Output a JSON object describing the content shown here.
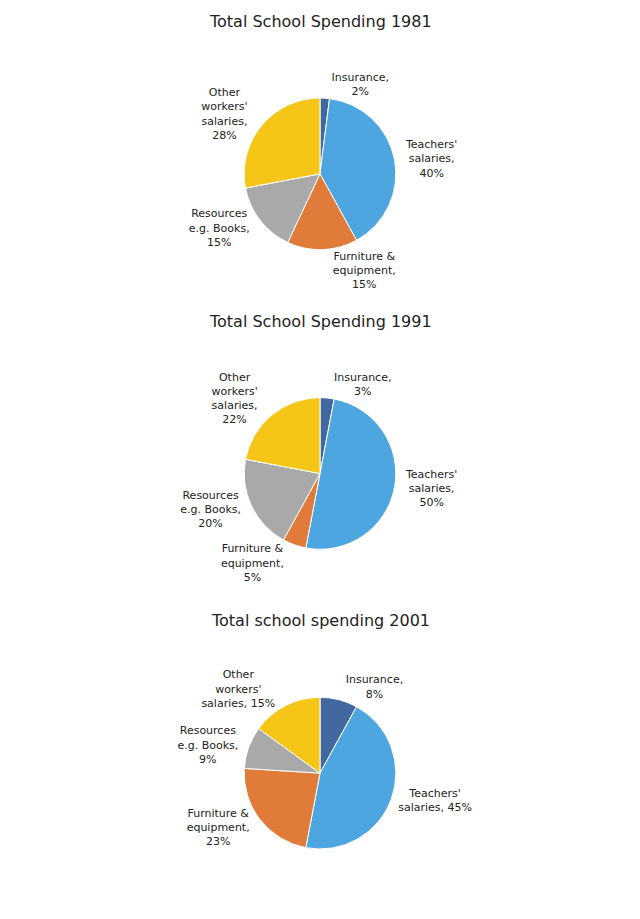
{
  "chart_data": [
    {
      "type": "pie",
      "title": "Total School Spending 1981",
      "categories": [
        "Insurance,\n2%",
        "Teachers'\nsalaries,\n40%",
        "Furniture &\nequipment,\n15%",
        "Resources\ne.g. Books,\n15%",
        "Other\nworkers'\nsalaries,\n28%"
      ],
      "values": [
        2,
        40,
        15,
        15,
        28
      ],
      "colors": [
        "#4169A0",
        "#4DA6E0",
        "#E07B39",
        "#A9A9A9",
        "#F5C518"
      ]
    },
    {
      "type": "pie",
      "title": "Total School Spending 1991",
      "categories": [
        "Insurance,\n3%",
        "Teachers'\nsalaries,\n50%",
        "Furniture &\nequipment,\n5%",
        "Resources\ne.g. Books,\n20%",
        "Other\nworkers'\nsalaries,\n22%"
      ],
      "values": [
        3,
        50,
        5,
        20,
        22
      ],
      "colors": [
        "#4169A0",
        "#4DA6E0",
        "#E07B39",
        "#A9A9A9",
        "#F5C518"
      ]
    },
    {
      "type": "pie",
      "title": "Total school spending 2001",
      "categories": [
        "Insurance,\n8%",
        "Teachers'\nsalaries, 45%",
        "Furniture &\nequipment,\n23%",
        "Resources\ne.g. Books,\n9%",
        "Other\nworkers'\nsalaries, 15%"
      ],
      "values": [
        8,
        45,
        23,
        9,
        15
      ],
      "colors": [
        "#4169A0",
        "#4DA6E0",
        "#E07B39",
        "#A9A9A9",
        "#F5C518"
      ]
    }
  ]
}
